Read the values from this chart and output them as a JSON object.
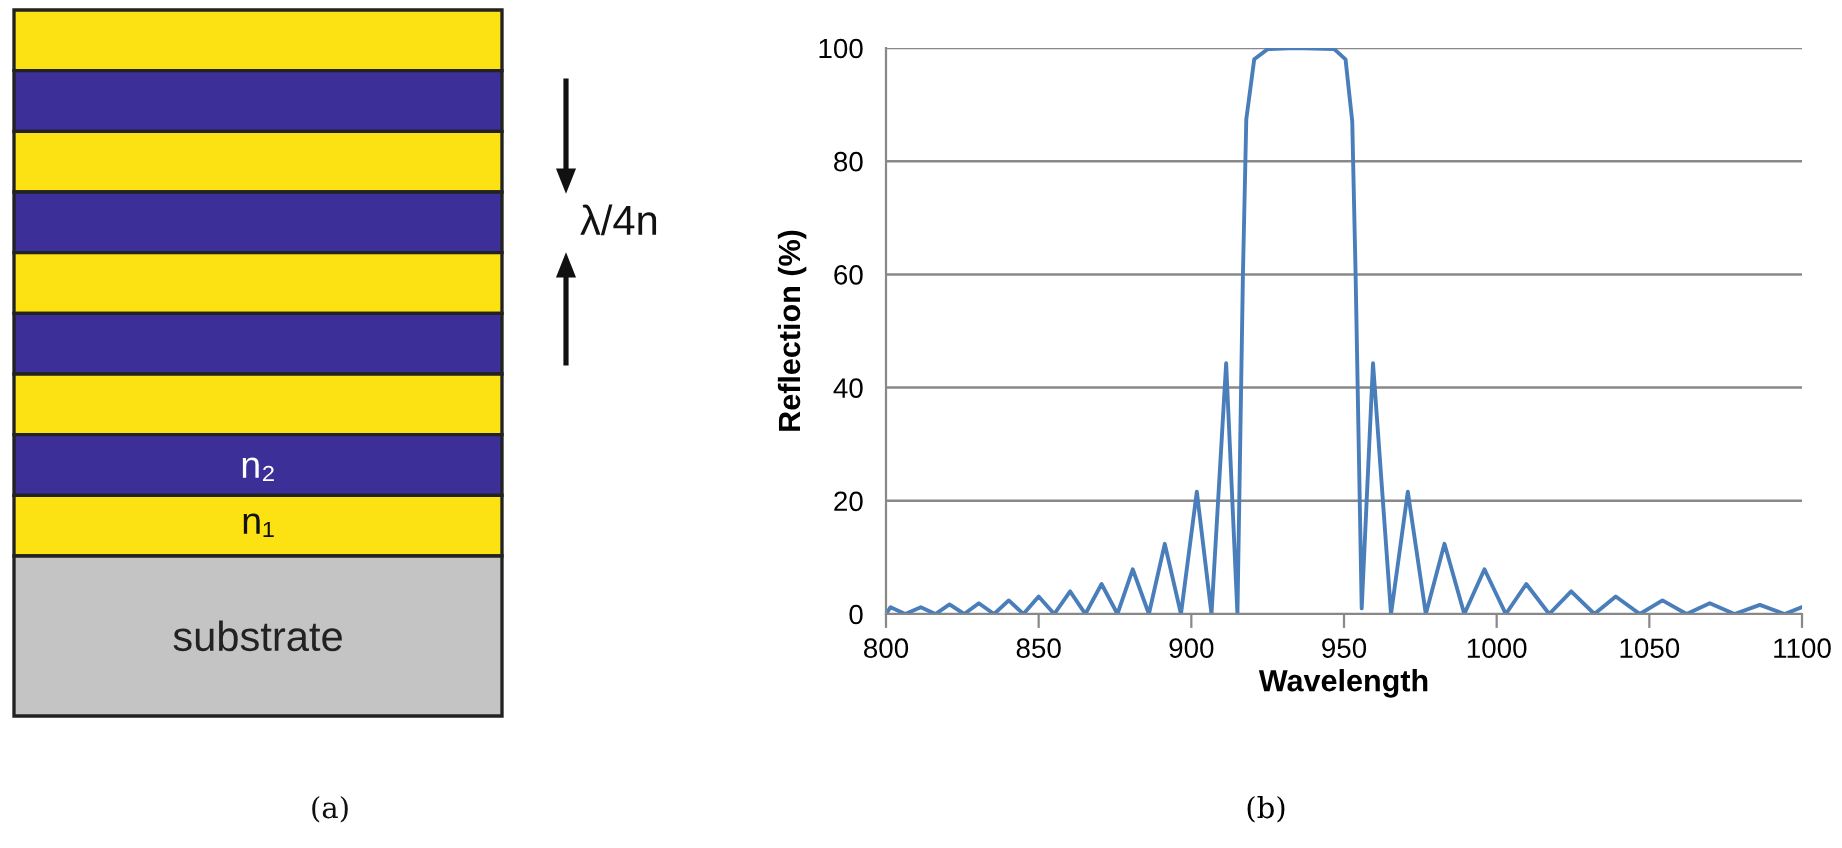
{
  "chart_data": [
    {
      "type": "other",
      "annotations": [
        "λ/4n",
        "n₂",
        "n₁",
        "substrate",
        "(a)"
      ]
    },
    {
      "type": "line",
      "xlabel": "Wavelength",
      "ylabel": "Reflection (%)",
      "annotations": [
        "(b)"
      ],
      "xlim": [
        800,
        1100
      ],
      "xticks": [
        800,
        850,
        900,
        950,
        1000,
        1050,
        1100
      ],
      "ylim": [
        0,
        100
      ],
      "yticks": [
        0,
        20,
        40,
        60,
        80,
        100
      ],
      "grid": "y",
      "marker": "none",
      "line_style": "solid",
      "series": [
        {
          "color": "#4a7ebb",
          "x": [
            800,
            801.5,
            806.3,
            811.4,
            816.2,
            820.8,
            825.6,
            830.4,
            835.4,
            840.2,
            845.0,
            850.0,
            855.1,
            860.3,
            865.3,
            870.6,
            875.8,
            880.8,
            886.1,
            891.3,
            896.6,
            901.8,
            906.6,
            911.4,
            915.1,
            916.9,
            918.0,
            920.6,
            925.0,
            933.7,
            946.8,
            950.5,
            952.7,
            953.8,
            955.8,
            959.5,
            965.4,
            970.9,
            976.8,
            982.9,
            989.4,
            996.0,
            1003.0,
            1009.7,
            1017.2,
            1024.4,
            1032.0,
            1039.0,
            1046.9,
            1054.3,
            1062.2,
            1069.8,
            1077.9,
            1086.2,
            1094.3,
            1100
          ],
          "values": [
            0,
            1.2,
            0,
            1.2,
            0,
            1.7,
            0,
            1.9,
            0,
            2.4,
            0,
            3.1,
            0,
            4.0,
            0,
            5.3,
            0,
            7.9,
            0,
            12.4,
            0,
            21.6,
            0,
            44.3,
            0,
            60,
            87.4,
            98,
            99.8,
            100,
            99.8,
            98,
            87,
            60,
            1,
            44.3,
            0,
            21.6,
            0,
            12.4,
            0,
            7.9,
            0,
            5.3,
            0,
            4.0,
            0,
            3.1,
            0,
            2.4,
            0,
            1.9,
            0,
            1.6,
            0,
            1.2
          ]
        }
      ]
    }
  ]
}
